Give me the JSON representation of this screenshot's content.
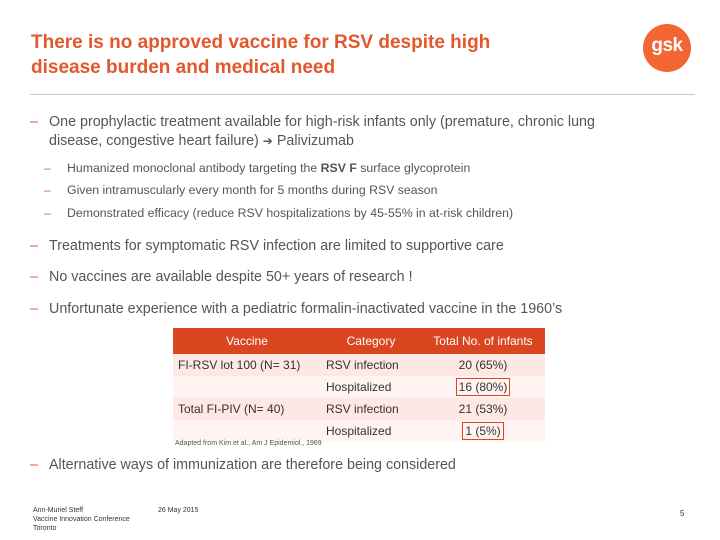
{
  "slide": {
    "title_line1": "There is no approved vaccine for RSV despite high",
    "title_line2": "disease burden and medical need",
    "logo_text": "gsk",
    "bullets": {
      "b1_line1": "One prophylactic treatment available for high-risk infants only (premature, chronic lung",
      "b1_line2_part1": "disease, congestive heart failure)",
      "b1_arrow": "➔",
      "b1_line2_part2": "Palivizumab",
      "s1_part1": "Humanized monoclonal antibody targeting the",
      "s1_bold": "RSV F",
      "s1_part2": "surface glycoprotein",
      "s2": "Given intramuscularly every month for 5 months during RSV season",
      "s3": "Demonstrated efficacy (reduce RSV hospitalizations by 45-55% in at-risk children)",
      "b2": "Treatments for symptomatic RSV infection are limited to supportive care",
      "b3": "No vaccines are available despite 50+ years of research !",
      "b4": "Unfortunate experience with a pediatric formalin-inactivated vaccine in the 1960’s",
      "b5": "Alternative ways of immunization are therefore being considered",
      "dash": "–"
    },
    "table": {
      "headers": [
        "Vaccine",
        "Category",
        "Total No. of infants"
      ],
      "rows": [
        [
          "FI-RSV lot 100 (N= 31)",
          "RSV infection",
          "20 (65%)"
        ],
        [
          "",
          "Hospitalized",
          "16 (80%)"
        ],
        [
          "Total FI-PIV (N= 40)",
          "RSV infection",
          "21 (53%)"
        ],
        [
          "",
          "Hospitalized",
          "1 (5%)"
        ]
      ],
      "caption": "Adapted from Kim et al., Am J Epidemiol., 1969"
    },
    "footer": {
      "author": "Ann-Muriel Steff",
      "event": "Vaccine Innovation Conference",
      "city": "Toronto",
      "date": "26 May 2015",
      "page": "5"
    },
    "colors": {
      "accent": "#e3572c",
      "table_header": "#d9461f",
      "logo": "#f36633"
    }
  }
}
